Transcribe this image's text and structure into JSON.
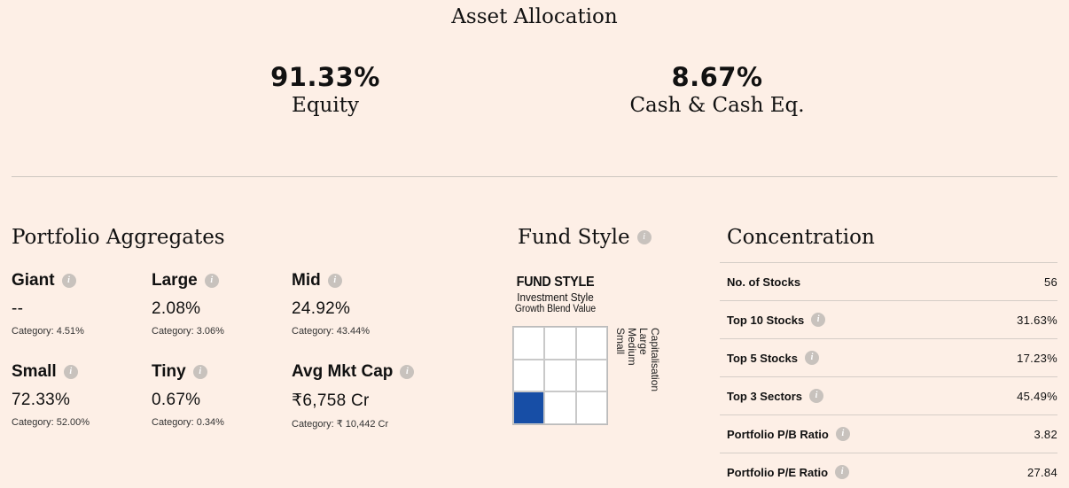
{
  "asset_allocation": {
    "title": "Asset Allocation",
    "equity": {
      "value": "91.33%",
      "label": "Equity"
    },
    "cash": {
      "value": "8.67%",
      "label": "Cash & Cash Eq."
    }
  },
  "portfolio_aggregates": {
    "title": "Portfolio Aggregates",
    "items": [
      {
        "name": "Giant",
        "value": "--",
        "category": "Category: 4.51%"
      },
      {
        "name": "Large",
        "value": "2.08%",
        "category": "Category: 3.06%"
      },
      {
        "name": "Mid",
        "value": "24.92%",
        "category": "Category: 43.44%"
      },
      {
        "name": "Small",
        "value": "72.33%",
        "category": "Category: 52.00%"
      },
      {
        "name": "Tiny",
        "value": "0.67%",
        "category": "Category: 0.34%"
      },
      {
        "name": "Avg Mkt Cap",
        "value": "₹6,758 Cr",
        "category": "Category: ₹ 10,442 Cr"
      }
    ]
  },
  "fund_style": {
    "title": "Fund Style",
    "box_title": "FUND STYLE",
    "subtitle": "Investment Style",
    "columns_label": "Growth Blend Value",
    "vertical_title": "Capitalisation",
    "vertical_label": "Large Medium Small",
    "highlight": {
      "row": "Small",
      "column": "Growth"
    },
    "highlight_color": "#174ea6"
  },
  "concentration": {
    "title": "Concentration",
    "rows": [
      {
        "label": "No. of Stocks",
        "value": "56"
      },
      {
        "label": "Top 10 Stocks",
        "value": "31.63%"
      },
      {
        "label": "Top 5 Stocks",
        "value": "17.23%"
      },
      {
        "label": "Top 3 Sectors",
        "value": "45.49%"
      },
      {
        "label": "Portfolio P/B Ratio",
        "value": "3.82"
      },
      {
        "label": "Portfolio P/E Ratio",
        "value": "27.84"
      }
    ]
  },
  "colors": {
    "background": "#fdefe6",
    "info_icon": "#c8c2bd",
    "style_box_highlight": "#174ea6"
  },
  "icons": {
    "info": "info-icon"
  }
}
